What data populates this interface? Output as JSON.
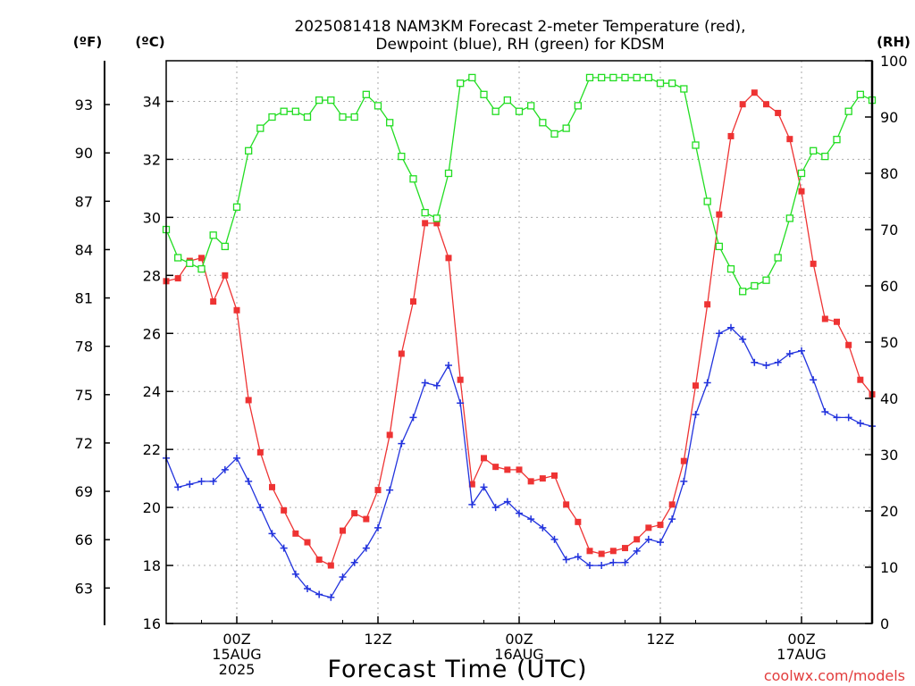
{
  "chart_data": {
    "type": "line",
    "title": "2025081418 NAM3KM Forecast 2-meter Temperature (red),",
    "subtitle": "Dewpoint (blue), RH (green) for KDSM",
    "xlabel": "Forecast Time (UTC)",
    "ylabel_c": "(ºC)",
    "ylabel_f": "(ºF)",
    "ylabel_rh": "(RH)",
    "credit": "coolwx.com/models",
    "x_unit": "hours since 2025-08-14 18Z",
    "xlim": [
      0,
      60
    ],
    "ylim_c": [
      16,
      35.4
    ],
    "ylim_rh": [
      0,
      100
    ],
    "grid": true,
    "x_ticks": [
      {
        "x": 6,
        "label": "00Z",
        "label2": "15AUG",
        "label3": "2025"
      },
      {
        "x": 18,
        "label": "12Z",
        "label2": "",
        "label3": ""
      },
      {
        "x": 30,
        "label": "00Z",
        "label2": "16AUG",
        "label3": ""
      },
      {
        "x": 42,
        "label": "12Z",
        "label2": "",
        "label3": ""
      },
      {
        "x": 54,
        "label": "00Z",
        "label2": "17AUG",
        "label3": ""
      }
    ],
    "c_ticks": [
      16,
      18,
      20,
      22,
      24,
      26,
      28,
      30,
      32,
      34
    ],
    "f_ticks": [
      63,
      66,
      69,
      72,
      75,
      78,
      81,
      84,
      87,
      90,
      93
    ],
    "rh_ticks": [
      0,
      10,
      20,
      30,
      40,
      50,
      60,
      70,
      80,
      90,
      100
    ],
    "series": [
      {
        "name": "Temperature",
        "color": "#ee3333",
        "marker": "filled-square",
        "axis": "c",
        "values": [
          27.8,
          27.9,
          28.5,
          28.6,
          27.1,
          28.0,
          26.8,
          23.7,
          21.9,
          20.7,
          19.9,
          19.1,
          18.8,
          18.2,
          18.0,
          19.2,
          19.8,
          19.6,
          20.6,
          22.5,
          25.3,
          27.1,
          29.8,
          29.8,
          28.6,
          24.4,
          20.8,
          21.7,
          21.4,
          21.3,
          21.3,
          20.9,
          21.0,
          21.1,
          20.1,
          19.5,
          18.5,
          18.4,
          18.5,
          18.6,
          18.9,
          19.3,
          19.4,
          20.1,
          21.6,
          24.2,
          27.0,
          30.1,
          32.8,
          33.9,
          34.3,
          33.9,
          33.6,
          32.7,
          30.9,
          28.4,
          26.5,
          26.4,
          25.6,
          24.4,
          23.9
        ]
      },
      {
        "name": "Dewpoint",
        "color": "#2233dd",
        "marker": "plus",
        "axis": "c",
        "values": [
          21.7,
          20.7,
          20.8,
          20.9,
          20.9,
          21.3,
          21.7,
          20.9,
          20.0,
          19.1,
          18.6,
          17.7,
          17.2,
          17.0,
          16.9,
          17.6,
          18.1,
          18.6,
          19.3,
          20.6,
          22.2,
          23.1,
          24.3,
          24.2,
          24.9,
          23.6,
          20.1,
          20.7,
          20.0,
          20.2,
          19.8,
          19.6,
          19.3,
          18.9,
          18.2,
          18.3,
          18.0,
          18.0,
          18.1,
          18.1,
          18.5,
          18.9,
          18.8,
          19.6,
          20.9,
          23.2,
          24.3,
          26.0,
          26.2,
          25.8,
          25.0,
          24.9,
          25.0,
          25.3,
          25.4,
          24.4,
          23.3,
          23.1,
          23.1,
          22.9,
          22.8
        ]
      },
      {
        "name": "RH",
        "color": "#22dd22",
        "marker": "open-square",
        "axis": "rh",
        "values": [
          70,
          65,
          64,
          63,
          69,
          67,
          74,
          84,
          88,
          90,
          91,
          91,
          90,
          93,
          93,
          90,
          90,
          94,
          92,
          89,
          83,
          79,
          73,
          72,
          80,
          96,
          97,
          94,
          91,
          93,
          91,
          92,
          89,
          87,
          88,
          92,
          97,
          97,
          97,
          97,
          97,
          97,
          96,
          96,
          95,
          85,
          75,
          67,
          63,
          59,
          60,
          61,
          65,
          72,
          80,
          84,
          83,
          86,
          91,
          94,
          93
        ]
      }
    ]
  }
}
